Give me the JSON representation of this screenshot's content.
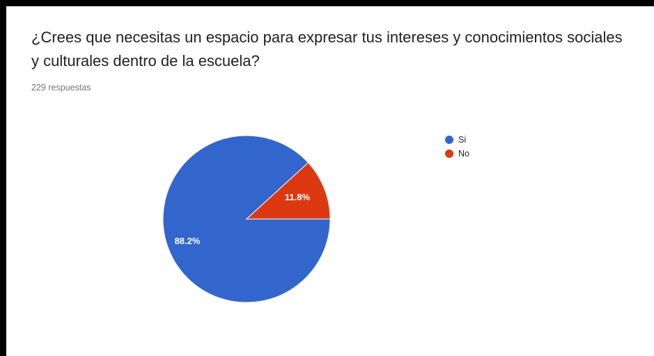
{
  "question": {
    "title": "¿Crees que necesitas un espacio para expresar tus intereses y conocimientos sociales y culturales dentro de la escuela?",
    "response_count": "229 respuestas"
  },
  "chart_data": {
    "type": "pie",
    "total_responses": 229,
    "slices": [
      {
        "label": "Si",
        "value": 88.2,
        "data_label": "88.2%",
        "color": "#3366cc"
      },
      {
        "label": "No",
        "value": 11.8,
        "data_label": "11.8%",
        "color": "#dc3912"
      }
    ],
    "legend_position": "right"
  }
}
